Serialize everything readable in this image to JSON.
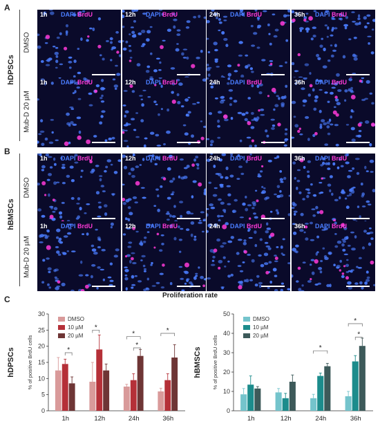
{
  "panels": {
    "A": {
      "letter": "A",
      "group": "hDPSCs",
      "rows": [
        {
          "condition": "DMSO",
          "times": [
            "1h",
            "12h",
            "24h",
            "36h"
          ]
        },
        {
          "condition": "Mub-D 20 µM",
          "times": [
            "1h",
            "12h",
            "24h",
            "36h"
          ]
        }
      ]
    },
    "B": {
      "letter": "B",
      "group": "hBMSCs",
      "rows": [
        {
          "condition": "DMSO",
          "times": [
            "1h",
            "12h",
            "24h",
            "36h"
          ]
        },
        {
          "condition": "Mub-D 20 µM",
          "times": [
            "1h",
            "12h",
            "24h",
            "36h"
          ]
        }
      ]
    },
    "C": {
      "letter": "C",
      "title": "Proliferation rate"
    }
  },
  "stain": {
    "dapi": "DAPI",
    "brdu": "BrdU"
  },
  "colors": {
    "dapi": "#4a7dff",
    "brdu": "#ff3ad8",
    "background": "#0a0a2a"
  },
  "chart_data": [
    {
      "type": "bar",
      "group_label": "hDPSCs",
      "ylabel": "% of positive BrdU cells",
      "categories": [
        "1h",
        "12h",
        "24h",
        "36h"
      ],
      "ylim": [
        0,
        30
      ],
      "yticks": [
        0,
        5,
        10,
        15,
        20,
        25,
        30
      ],
      "legend_position": "top-left",
      "series": [
        {
          "name": "DMSO",
          "color": "#d99a9a",
          "values": [
            12.5,
            9,
            7.5,
            6
          ],
          "errors": [
            4,
            6,
            0.7,
            1
          ]
        },
        {
          "name": "10 µM",
          "color": "#b53038",
          "values": [
            14.5,
            19,
            9.5,
            9.5
          ],
          "errors": [
            1.5,
            4.5,
            2,
            2
          ]
        },
        {
          "name": "20 µM",
          "color": "#6e3535",
          "values": [
            8.5,
            12.5,
            17,
            16.5
          ],
          "errors": [
            2,
            2,
            2,
            4
          ]
        }
      ],
      "significance": [
        {
          "category": "1h",
          "from": "10 µM",
          "to": "20 µM",
          "label": "*",
          "y": 18
        },
        {
          "category": "12h",
          "from": "DMSO",
          "to": "10 µM",
          "label": "*",
          "y": 25
        },
        {
          "category": "24h",
          "from": "DMSO",
          "to": "20 µM",
          "label": "*",
          "y": 23
        },
        {
          "category": "24h",
          "from": "10 µM",
          "to": "20 µM",
          "label": "*",
          "y": 19.5
        },
        {
          "category": "36h",
          "from": "DMSO",
          "to": "20 µM",
          "label": "*",
          "y": 24
        }
      ]
    },
    {
      "type": "bar",
      "group_label": "hBMSCs",
      "ylabel": "% of positive BrdU cells",
      "categories": [
        "1h",
        "12h",
        "24h",
        "36h"
      ],
      "ylim": [
        0,
        50
      ],
      "yticks": [
        0,
        10,
        20,
        30,
        40,
        50
      ],
      "legend_position": "top-left",
      "series": [
        {
          "name": "DMSO",
          "color": "#74c4cc",
          "values": [
            8.5,
            9.5,
            6.5,
            7.5
          ],
          "errors": [
            3,
            2,
            2,
            2.5
          ]
        },
        {
          "name": "10 µM",
          "color": "#1c8c8c",
          "values": [
            13.5,
            6.5,
            18,
            25.5
          ],
          "errors": [
            4.5,
            2.5,
            1.5,
            3
          ]
        },
        {
          "name": "20 µM",
          "color": "#3d5a5a",
          "values": [
            11.5,
            15,
            23,
            33.5
          ],
          "errors": [
            1,
            3.5,
            1.5,
            4
          ]
        }
      ],
      "significance": [
        {
          "category": "24h",
          "from": "DMSO",
          "to": "20 µM",
          "label": "*",
          "y": 31
        },
        {
          "category": "36h",
          "from": "DMSO",
          "to": "20 µM",
          "label": "*",
          "y": 45
        },
        {
          "category": "36h",
          "from": "10 µM",
          "to": "20 µM",
          "label": "*",
          "y": 38
        }
      ]
    }
  ]
}
